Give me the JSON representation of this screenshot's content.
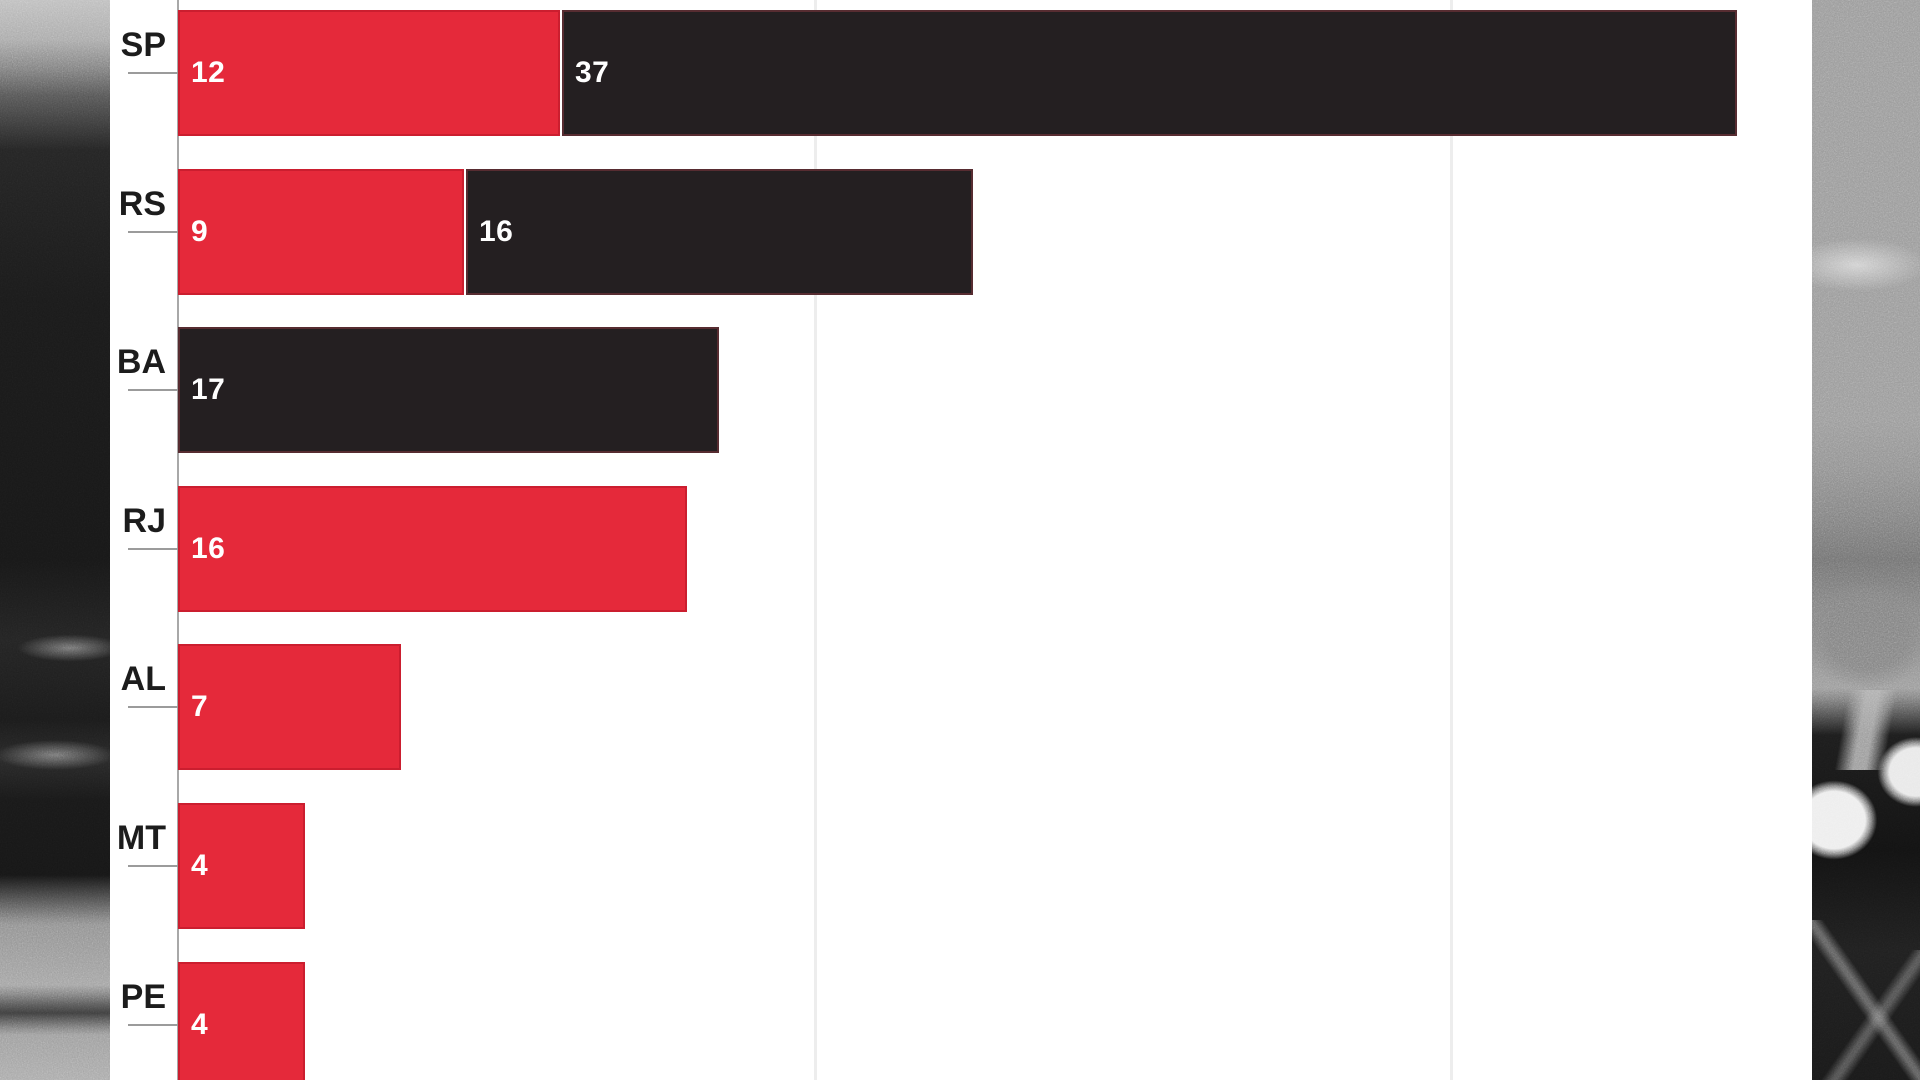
{
  "chart_data": {
    "type": "bar",
    "orientation": "horizontal",
    "stacked": true,
    "title": "",
    "xlabel": "",
    "ylabel": "",
    "legend": "none",
    "categories": [
      "SP",
      "RS",
      "BA",
      "RJ",
      "AL",
      "MT",
      "PE"
    ],
    "series": [
      {
        "color": "#e5293a",
        "values": [
          12,
          9,
          0,
          16,
          7,
          4,
          4
        ]
      },
      {
        "color": "#241f21",
        "values": [
          37,
          16,
          17,
          0,
          0,
          0,
          0
        ]
      }
    ],
    "totals": [
      49,
      25,
      17,
      16,
      7,
      4,
      4
    ],
    "xlim": [
      0,
      51
    ],
    "gridline_values": [
      20,
      40
    ],
    "grid": "vertical-light",
    "value_labels_shown_inside_bars": true,
    "value_label_color": "#ffffff"
  }
}
